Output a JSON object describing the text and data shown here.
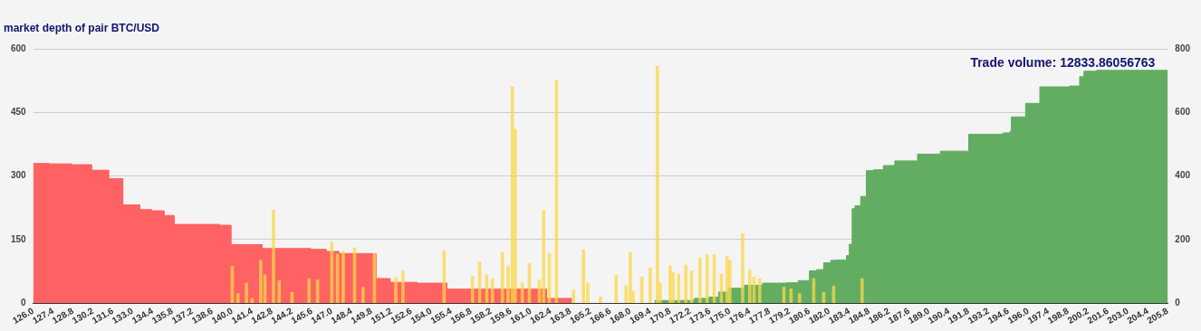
{
  "chart_data": {
    "type": "area",
    "title": "market depth of pair BTC/USD",
    "annotations": [
      "Trade volume: 12833.86056763"
    ],
    "xlim": [
      126,
      205.8
    ],
    "xticks": [
      {
        "value": 126,
        "label": "126.0"
      },
      {
        "value": 127.4,
        "label": "127.4"
      },
      {
        "value": 128.8,
        "label": "128.8"
      },
      {
        "value": 130.2,
        "label": "130.2"
      },
      {
        "value": 131.6,
        "label": "131.6"
      },
      {
        "value": 133,
        "label": "133.0"
      },
      {
        "value": 134.4,
        "label": "134.4"
      },
      {
        "value": 135.8,
        "label": "135.8"
      },
      {
        "value": 137.2,
        "label": "137.2"
      },
      {
        "value": 138.6,
        "label": "138.6"
      },
      {
        "value": 140,
        "label": "140.0"
      },
      {
        "value": 141.4,
        "label": "141.4"
      },
      {
        "value": 142.8,
        "label": "142.8"
      },
      {
        "value": 144.2,
        "label": "144.2"
      },
      {
        "value": 145.6,
        "label": "145.6"
      },
      {
        "value": 147,
        "label": "147.0"
      },
      {
        "value": 148.4,
        "label": "148.4"
      },
      {
        "value": 149.8,
        "label": "149.8"
      },
      {
        "value": 151.2,
        "label": "151.2"
      },
      {
        "value": 152.6,
        "label": "152.6"
      },
      {
        "value": 154,
        "label": "154.0"
      },
      {
        "value": 155.4,
        "label": "155.4"
      },
      {
        "value": 156.8,
        "label": "156.8"
      },
      {
        "value": 158.2,
        "label": "158.2"
      },
      {
        "value": 159.6,
        "label": "159.6"
      },
      {
        "value": 161,
        "label": "161.0"
      },
      {
        "value": 162.4,
        "label": "162.4"
      },
      {
        "value": 163.8,
        "label": "163.8"
      },
      {
        "value": 165.2,
        "label": "165.2"
      },
      {
        "value": 166.6,
        "label": "166.6"
      },
      {
        "value": 168,
        "label": "168.0"
      },
      {
        "value": 169.4,
        "label": "169.4"
      },
      {
        "value": 170.8,
        "label": "170.8"
      },
      {
        "value": 172.2,
        "label": "172.2"
      },
      {
        "value": 173.6,
        "label": "173.6"
      },
      {
        "value": 175,
        "label": "175.0"
      },
      {
        "value": 176.4,
        "label": "176.4"
      },
      {
        "value": 177.8,
        "label": "177.8"
      },
      {
        "value": 179.2,
        "label": "179.2"
      },
      {
        "value": 180.6,
        "label": "180.6"
      },
      {
        "value": 182,
        "label": "182.0"
      },
      {
        "value": 183.4,
        "label": "183.4"
      },
      {
        "value": 184.8,
        "label": "184.8"
      },
      {
        "value": 186.2,
        "label": "186.2"
      },
      {
        "value": 187.6,
        "label": "187.6"
      },
      {
        "value": 189,
        "label": "189.0"
      },
      {
        "value": 190.4,
        "label": "190.4"
      },
      {
        "value": 191.8,
        "label": "191.8"
      },
      {
        "value": 193.2,
        "label": "193.2"
      },
      {
        "value": 194.6,
        "label": "194.6"
      },
      {
        "value": 196,
        "label": "196.0"
      },
      {
        "value": 197.4,
        "label": "197.4"
      },
      {
        "value": 198.8,
        "label": "198.8"
      },
      {
        "value": 200.2,
        "label": "200.2"
      },
      {
        "value": 201.6,
        "label": "201.6"
      },
      {
        "value": 203,
        "label": "203.0"
      },
      {
        "value": 204.4,
        "label": "204.4"
      },
      {
        "value": 205.8,
        "label": "205.8"
      }
    ],
    "ylim": [
      0,
      600
    ],
    "yticks": [
      0,
      150,
      300,
      450,
      600
    ],
    "y2lim": [
      0,
      800
    ],
    "y2ticks": [
      0,
      200,
      400,
      600,
      800
    ],
    "grid": "y",
    "legend": false,
    "marker": "none",
    "series": [
      {
        "color": "#ff6262",
        "x": [
          126,
          127.1,
          127.1,
          128.7,
          128.7,
          130.1,
          130.1,
          131.3,
          131.3,
          132.3,
          132.3,
          133.5,
          133.5,
          134.3,
          134.3,
          135.2,
          135.2,
          135.9,
          135.9,
          139.1,
          139.1,
          139.9,
          139.9,
          142.1,
          142.1,
          145.5,
          145.5,
          146.6,
          146.6,
          147.5,
          147.5,
          150.1,
          150.1,
          151.1,
          151.1,
          153,
          153,
          155.1,
          155.1,
          162.1,
          162.1,
          163.9
        ],
        "values": [
          330,
          330,
          329,
          329,
          327,
          327,
          314,
          314,
          294,
          294,
          232,
          232,
          221,
          221,
          218,
          218,
          207,
          207,
          186,
          186,
          184,
          184,
          138,
          138,
          129,
          129,
          127,
          127,
          122,
          122,
          117,
          117,
          58,
          58,
          49,
          49,
          47,
          47,
          33,
          33,
          11,
          11
        ]
      },
      {
        "color": "#62ad62",
        "x": [
          169.7,
          172.5,
          172.5,
          173.5,
          173.5,
          174.2,
          174.2,
          174.9,
          174.9,
          176,
          176,
          177.3,
          177.3,
          179,
          179,
          179.8,
          179.8,
          180.6,
          180.6,
          181.1,
          181.1,
          181.6,
          181.6,
          182.1,
          182.1,
          182.5,
          182.5,
          183.2,
          183.2,
          183.4,
          183.4,
          183.6,
          183.6,
          183.8,
          183.8,
          184.2,
          184.2,
          184.6,
          184.6,
          185.1,
          185.1,
          185.8,
          185.8,
          186.6,
          186.6,
          188.2,
          188.2,
          189.8,
          189.8,
          191.8,
          191.8,
          194.2,
          194.2,
          194.7,
          194.7,
          194.8,
          194.8,
          195.8,
          195.8,
          196.8,
          196.8,
          198.9,
          198.9,
          199.6,
          199.6,
          199.9,
          199.9,
          200.8,
          200.8,
          205.8
        ],
        "values": [
          6,
          6,
          11,
          11,
          14,
          14,
          26,
          26,
          35,
          35,
          42,
          42,
          47,
          47,
          48,
          48,
          53,
          53,
          76,
          76,
          79,
          79,
          95,
          95,
          101,
          101,
          102,
          102,
          112,
          112,
          139,
          139,
          223,
          223,
          230,
          230,
          252,
          252,
          313,
          313,
          315,
          315,
          325,
          325,
          336,
          336,
          352,
          352,
          359,
          359,
          399,
          399,
          402,
          402,
          406,
          406,
          440,
          440,
          472,
          472,
          511,
          511,
          513,
          513,
          535,
          535,
          548,
          548,
          550,
          550
        ]
      },
      {
        "type": "bar",
        "axis": "y2",
        "color": "#fbd848",
        "x": [
          140,
          140.4,
          141,
          141.4,
          142,
          142.3,
          142.9,
          143.3,
          144.2,
          145.4,
          146,
          147,
          147.4,
          147.8,
          148.6,
          149.2,
          150,
          151.5,
          152,
          154.9,
          156.9,
          157.4,
          157.9,
          158.3,
          159,
          159.4,
          159.7,
          159.9,
          160.4,
          160.9,
          161.6,
          161.9,
          162.3,
          162.8,
          164,
          164.7,
          165,
          165.9,
          167,
          167.7,
          168,
          168.2,
          168.8,
          169.4,
          169.9,
          170.1,
          170.8,
          171,
          171.4,
          171.9,
          172.3,
          172.9,
          173.4,
          173.9,
          174.4,
          174.8,
          175,
          175.9,
          176.4,
          176.7,
          177.1,
          178.8,
          179.3,
          179.9,
          180.9,
          181.6,
          182.3,
          184.3
        ],
        "values": [
          116,
          30,
          63,
          15,
          135,
          89,
          292,
          70,
          34,
          77,
          73,
          192,
          155,
          164,
          174,
          50,
          156,
          80,
          101,
          164,
          84,
          130,
          89,
          77,
          159,
          116,
          681,
          548,
          63,
          125,
          73,
          292,
          157,
          701,
          41,
          168,
          63,
          20,
          87,
          54,
          159,
          37,
          82,
          111,
          746,
          63,
          117,
          96,
          91,
          120,
          101,
          141,
          152,
          153,
          91,
          147,
          135,
          218,
          104,
          82,
          77,
          50,
          45,
          30,
          77,
          34,
          54,
          77
        ]
      }
    ]
  }
}
